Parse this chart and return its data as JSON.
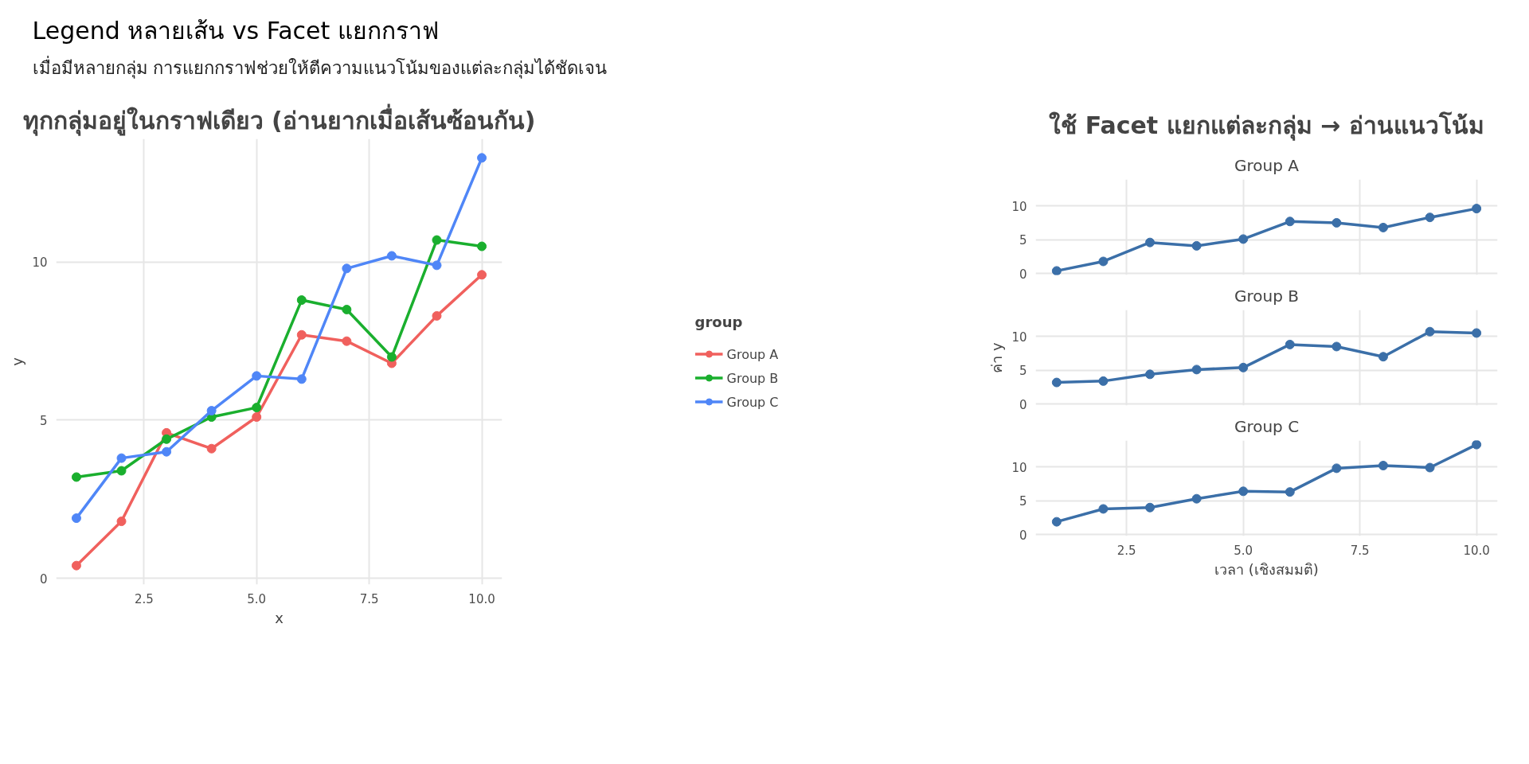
{
  "chart_data": [
    {
      "type": "other",
      "title": "Legend หลายเส้น vs Facet แยกกราฟ",
      "subtitle": "เมื่อมีหลายกลุ่ม การแยกกราฟช่วยให้ตีความแนวโน้มของแต่ละกลุ่มได้ชัดเจน"
    },
    {
      "type": "line",
      "title": "ทุกกลุ่มอยู่ในกราฟเดียว (อ่านยากเมื่อเส้นซ้อนกัน)",
      "xlabel": "x",
      "ylabel": "y",
      "legend_title": "group",
      "legend": "right",
      "grid": true,
      "marker": "circle",
      "line_style": "solid",
      "x": [
        1,
        2,
        3,
        4,
        5,
        6,
        7,
        8,
        9,
        10
      ],
      "xlim": [
        0.55,
        10.45
      ],
      "xticks": [
        {
          "value": 2.5,
          "label": "2.5"
        },
        {
          "value": 5,
          "label": "5.0"
        },
        {
          "value": 7.5,
          "label": "7.5"
        },
        {
          "value": 10,
          "label": "10.0"
        }
      ],
      "ylim": [
        -0.2,
        13.9
      ],
      "yticks": [
        0,
        5,
        10
      ],
      "series": [
        {
          "name": "Group A",
          "color": "#f0605d",
          "values": [
            0.4,
            1.8,
            4.6,
            4.1,
            5.1,
            7.7,
            7.5,
            6.8,
            8.3,
            9.6
          ]
        },
        {
          "name": "Group B",
          "color": "#1aaf2e",
          "values": [
            3.2,
            3.4,
            4.4,
            5.1,
            5.4,
            8.8,
            8.5,
            7.0,
            10.7,
            10.5
          ]
        },
        {
          "name": "Group C",
          "color": "#4f86f7",
          "values": [
            1.9,
            3.8,
            4.0,
            5.3,
            6.4,
            6.3,
            9.8,
            10.2,
            9.9,
            13.3
          ]
        }
      ]
    },
    {
      "type": "line",
      "title": "Group A",
      "annotations": [
        "ใช้ Facet แยกแต่ละกลุ่ม → อ่านแนวโน้ม"
      ],
      "grid": true,
      "marker": "circle",
      "line_style": "solid",
      "tick_labels": "y",
      "x": [
        1,
        2,
        3,
        4,
        5,
        6,
        7,
        8,
        9,
        10
      ],
      "xlim": [
        0.55,
        10.45
      ],
      "xticks": [
        {
          "value": 2.5,
          "label": null
        },
        {
          "value": 5,
          "label": null
        },
        {
          "value": 7.5,
          "label": null
        },
        {
          "value": 10,
          "label": null
        }
      ],
      "ylim": [
        -0.2,
        13.9
      ],
      "yticks": [
        0,
        5,
        10
      ],
      "series": [
        {
          "color": "#3b6fa8",
          "values": [
            0.4,
            1.8,
            4.6,
            4.1,
            5.1,
            7.7,
            7.5,
            6.8,
            8.3,
            9.6
          ]
        }
      ]
    },
    {
      "type": "line",
      "title": "Group B",
      "ylabel": "ค่า y",
      "grid": true,
      "marker": "circle",
      "line_style": "solid",
      "tick_labels": "y",
      "x": [
        1,
        2,
        3,
        4,
        5,
        6,
        7,
        8,
        9,
        10
      ],
      "xlim": [
        0.55,
        10.45
      ],
      "xticks": [
        {
          "value": 2.5,
          "label": null
        },
        {
          "value": 5,
          "label": null
        },
        {
          "value": 7.5,
          "label": null
        },
        {
          "value": 10,
          "label": null
        }
      ],
      "ylim": [
        -0.2,
        13.9
      ],
      "yticks": [
        0,
        5,
        10
      ],
      "series": [
        {
          "color": "#3b6fa8",
          "values": [
            3.2,
            3.4,
            4.4,
            5.1,
            5.4,
            8.8,
            8.5,
            7.0,
            10.7,
            10.5
          ]
        }
      ]
    },
    {
      "type": "line",
      "title": "Group C",
      "xlabel": "เวลา (เชิงสมมติ)",
      "grid": true,
      "marker": "circle",
      "line_style": "solid",
      "x": [
        1,
        2,
        3,
        4,
        5,
        6,
        7,
        8,
        9,
        10
      ],
      "xlim": [
        0.55,
        10.45
      ],
      "xticks": [
        {
          "value": 2.5,
          "label": "2.5"
        },
        {
          "value": 5,
          "label": "5.0"
        },
        {
          "value": 7.5,
          "label": "7.5"
        },
        {
          "value": 10,
          "label": "10.0"
        }
      ],
      "ylim": [
        -0.2,
        13.9
      ],
      "yticks": [
        0,
        5,
        10
      ],
      "series": [
        {
          "color": "#3b6fa8",
          "values": [
            1.9,
            3.8,
            4.0,
            5.3,
            6.4,
            6.3,
            9.8,
            10.2,
            9.9,
            13.3
          ]
        }
      ]
    }
  ]
}
